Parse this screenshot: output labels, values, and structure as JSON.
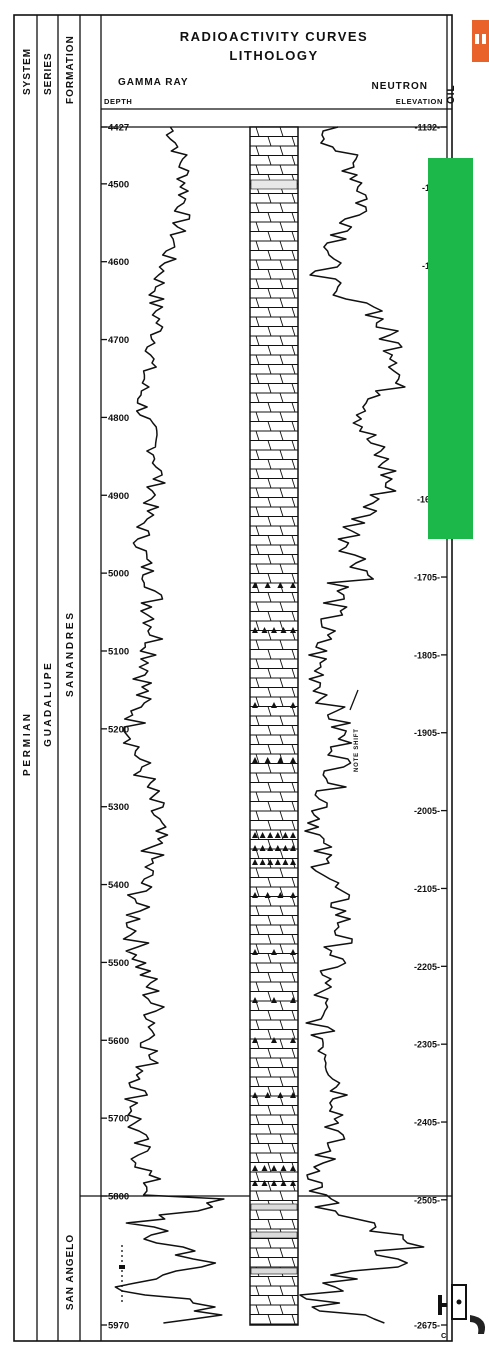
{
  "header": {
    "title_line1": "RADIOACTIVITY CURVES",
    "title_line2": "LITHOLOGY",
    "gamma_label": "GAMMA RAY",
    "neutron_label": "NEUTRON",
    "depth_label": "DEPTH",
    "elevation_label": "ELEVATION",
    "column_labels": {
      "system": "SYSTEM",
      "series": "SERIES",
      "formation": "FORMATION",
      "oil": "OIL"
    }
  },
  "stratigraphy": {
    "system": "P E R M I A N",
    "series": "G U A D A L U P E",
    "formation_upper": "S A N   A N D R E S",
    "formation_lower": "SAN ANGELO"
  },
  "depth_scale": {
    "top": 4427,
    "bottom": 5970,
    "ticks": [
      {
        "depth": 4427,
        "label": "4427"
      },
      {
        "depth": 4500,
        "label": "4500"
      },
      {
        "depth": 4600,
        "label": "4600"
      },
      {
        "depth": 4700,
        "label": "4700"
      },
      {
        "depth": 4800,
        "label": "4800"
      },
      {
        "depth": 4900,
        "label": "4900"
      },
      {
        "depth": 5000,
        "label": "5000"
      },
      {
        "depth": 5100,
        "label": "5100"
      },
      {
        "depth": 5200,
        "label": "5200"
      },
      {
        "depth": 5300,
        "label": "5300"
      },
      {
        "depth": 5400,
        "label": "5400"
      },
      {
        "depth": 5500,
        "label": "5500"
      },
      {
        "depth": 5600,
        "label": "5600"
      },
      {
        "depth": 5700,
        "label": "5700"
      },
      {
        "depth": 5800,
        "label": "5800"
      },
      {
        "depth": 5970,
        "label": "5970"
      }
    ]
  },
  "elevation_scale": {
    "ticks": [
      {
        "depth": 4427,
        "label": "-1132-"
      },
      {
        "depth": 4505,
        "label": "-120"
      },
      {
        "depth": 4605,
        "label": "-130"
      },
      {
        "depth": 4905,
        "label": "-1605"
      },
      {
        "depth": 5005,
        "label": "-1705-"
      },
      {
        "depth": 5105,
        "label": "-1805-"
      },
      {
        "depth": 5205,
        "label": "-1905-"
      },
      {
        "depth": 5305,
        "label": "-2005-"
      },
      {
        "depth": 5405,
        "label": "-2105-"
      },
      {
        "depth": 5505,
        "label": "-2205-"
      },
      {
        "depth": 5605,
        "label": "-2305-"
      },
      {
        "depth": 5705,
        "label": "-2405-"
      },
      {
        "depth": 5805,
        "label": "-2505-"
      },
      {
        "depth": 5970,
        "label": "-2675-"
      }
    ]
  },
  "annotations": {
    "note_shift": "NOTE SHIFT",
    "corner_letter": "C"
  },
  "colors": {
    "ink": "#111111",
    "paper": "#ffffff",
    "overlay_green": "#1cb84a",
    "corner_orange": "#e8622a"
  }
}
